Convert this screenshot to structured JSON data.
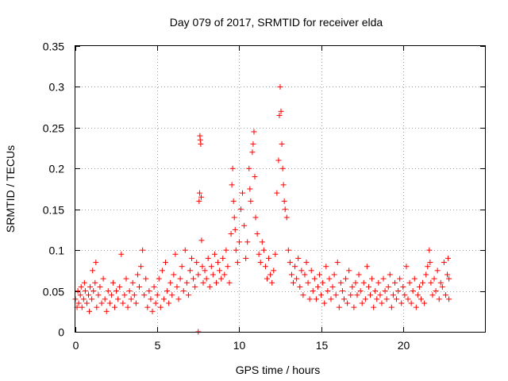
{
  "chart_data": {
    "type": "scatter",
    "title": "Day 079 of 2017, SRMTID for receiver elda",
    "xlabel": "GPS time / hours",
    "ylabel": "SRMTID / TECUs",
    "xlim": [
      0,
      25
    ],
    "ylim": [
      0,
      0.35
    ],
    "xticks": [
      0,
      5,
      10,
      15,
      20
    ],
    "xtick_labels": [
      "0",
      "5",
      "10",
      "15",
      "20"
    ],
    "yticks": [
      0,
      0.05,
      0.1,
      0.15,
      0.2,
      0.25,
      0.3,
      0.35
    ],
    "ytick_labels": [
      "0",
      "0.05",
      "0.1",
      "0.15",
      "0.2",
      "0.25",
      "0.3",
      "0.35"
    ],
    "grid": true,
    "marker": "plus",
    "color": "#ff0000",
    "series": [
      {
        "name": "SRMTID",
        "points": [
          [
            0.0,
            0.04
          ],
          [
            0.1,
            0.03
          ],
          [
            0.15,
            0.05
          ],
          [
            0.2,
            0.035
          ],
          [
            0.3,
            0.045
          ],
          [
            0.35,
            0.055
          ],
          [
            0.4,
            0.03
          ],
          [
            0.5,
            0.04
          ],
          [
            0.55,
            0.06
          ],
          [
            0.6,
            0.05
          ],
          [
            0.7,
            0.035
          ],
          [
            0.8,
            0.045
          ],
          [
            0.85,
            0.025
          ],
          [
            0.9,
            0.055
          ],
          [
            1.0,
            0.04
          ],
          [
            1.05,
            0.075
          ],
          [
            1.1,
            0.05
          ],
          [
            1.2,
            0.06
          ],
          [
            1.25,
            0.085
          ],
          [
            1.3,
            0.03
          ],
          [
            1.4,
            0.045
          ],
          [
            1.5,
            0.055
          ],
          [
            1.6,
            0.035
          ],
          [
            1.7,
            0.065
          ],
          [
            1.8,
            0.04
          ],
          [
            1.9,
            0.025
          ],
          [
            2.0,
            0.05
          ],
          [
            2.1,
            0.035
          ],
          [
            2.2,
            0.045
          ],
          [
            2.3,
            0.06
          ],
          [
            2.4,
            0.03
          ],
          [
            2.5,
            0.05
          ],
          [
            2.6,
            0.04
          ],
          [
            2.7,
            0.055
          ],
          [
            2.8,
            0.095
          ],
          [
            2.9,
            0.035
          ],
          [
            3.0,
            0.045
          ],
          [
            3.1,
            0.065
          ],
          [
            3.2,
            0.03
          ],
          [
            3.3,
            0.05
          ],
          [
            3.4,
            0.04
          ],
          [
            3.5,
            0.06
          ],
          [
            3.6,
            0.045
          ],
          [
            3.7,
            0.035
          ],
          [
            3.8,
            0.07
          ],
          [
            3.9,
            0.055
          ],
          [
            4.0,
            0.08
          ],
          [
            4.1,
            0.1
          ],
          [
            4.2,
            0.045
          ],
          [
            4.3,
            0.065
          ],
          [
            4.4,
            0.03
          ],
          [
            4.5,
            0.05
          ],
          [
            4.6,
            0.04
          ],
          [
            4.7,
            0.025
          ],
          [
            4.8,
            0.055
          ],
          [
            4.9,
            0.035
          ],
          [
            5.0,
            0.045
          ],
          [
            5.1,
            0.065
          ],
          [
            5.2,
            0.03
          ],
          [
            5.3,
            0.075
          ],
          [
            5.4,
            0.04
          ],
          [
            5.5,
            0.085
          ],
          [
            5.6,
            0.05
          ],
          [
            5.7,
            0.035
          ],
          [
            5.8,
            0.06
          ],
          [
            5.9,
            0.045
          ],
          [
            6.0,
            0.07
          ],
          [
            6.1,
            0.095
          ],
          [
            6.2,
            0.055
          ],
          [
            6.3,
            0.04
          ],
          [
            6.4,
            0.065
          ],
          [
            6.5,
            0.08
          ],
          [
            6.6,
            0.05
          ],
          [
            6.7,
            0.1
          ],
          [
            6.8,
            0.06
          ],
          [
            6.9,
            0.045
          ],
          [
            7.0,
            0.075
          ],
          [
            7.1,
            0.09
          ],
          [
            7.2,
            0.065
          ],
          [
            7.3,
            0.055
          ],
          [
            7.4,
            0.085
          ],
          [
            7.5,
            0.07
          ],
          [
            7.55,
            0.16
          ],
          [
            7.58,
            0.17
          ],
          [
            7.6,
            0.24
          ],
          [
            7.62,
            0.235
          ],
          [
            7.65,
            0.23
          ],
          [
            7.68,
            0.165
          ],
          [
            7.7,
            0.112
          ],
          [
            7.75,
            0.08
          ],
          [
            7.8,
            0.06
          ],
          [
            7.9,
            0.075
          ],
          [
            8.0,
            0.065
          ],
          [
            8.1,
            0.09
          ],
          [
            8.2,
            0.055
          ],
          [
            8.3,
            0.08
          ],
          [
            8.4,
            0.07
          ],
          [
            8.5,
            0.095
          ],
          [
            8.6,
            0.06
          ],
          [
            8.7,
            0.085
          ],
          [
            8.8,
            0.075
          ],
          [
            8.9,
            0.065
          ],
          [
            9.0,
            0.09
          ],
          [
            9.1,
            0.07
          ],
          [
            9.2,
            0.1
          ],
          [
            9.3,
            0.08
          ],
          [
            9.4,
            0.06
          ],
          [
            9.5,
            0.12
          ],
          [
            9.55,
            0.18
          ],
          [
            9.6,
            0.2
          ],
          [
            9.65,
            0.16
          ],
          [
            9.7,
            0.14
          ],
          [
            9.75,
            0.125
          ],
          [
            9.8,
            0.1
          ],
          [
            9.9,
            0.085
          ],
          [
            10.0,
            0.11
          ],
          [
            10.1,
            0.15
          ],
          [
            10.2,
            0.17
          ],
          [
            10.3,
            0.13
          ],
          [
            10.4,
            0.09
          ],
          [
            10.5,
            0.11
          ],
          [
            10.6,
            0.2
          ],
          [
            10.65,
            0.175
          ],
          [
            10.7,
            0.16
          ],
          [
            10.8,
            0.22
          ],
          [
            10.85,
            0.23
          ],
          [
            10.9,
            0.245
          ],
          [
            10.95,
            0.19
          ],
          [
            11.0,
            0.14
          ],
          [
            11.1,
            0.12
          ],
          [
            11.2,
            0.095
          ],
          [
            11.3,
            0.085
          ],
          [
            11.4,
            0.11
          ],
          [
            11.5,
            0.1
          ],
          [
            11.6,
            0.08
          ],
          [
            11.7,
            0.065
          ],
          [
            11.8,
            0.09
          ],
          [
            11.9,
            0.07
          ],
          [
            12.0,
            0.06
          ],
          [
            12.1,
            0.075
          ],
          [
            12.2,
            0.095
          ],
          [
            12.3,
            0.17
          ],
          [
            12.4,
            0.21
          ],
          [
            12.45,
            0.265
          ],
          [
            12.5,
            0.3
          ],
          [
            12.55,
            0.27
          ],
          [
            12.6,
            0.23
          ],
          [
            12.65,
            0.2
          ],
          [
            12.7,
            0.18
          ],
          [
            12.75,
            0.16
          ],
          [
            12.8,
            0.15
          ],
          [
            12.9,
            0.14
          ],
          [
            13.0,
            0.1
          ],
          [
            13.1,
            0.085
          ],
          [
            13.2,
            0.07
          ],
          [
            13.3,
            0.06
          ],
          [
            13.4,
            0.08
          ],
          [
            13.5,
            0.065
          ],
          [
            13.6,
            0.09
          ],
          [
            13.7,
            0.055
          ],
          [
            13.8,
            0.075
          ],
          [
            13.9,
            0.045
          ],
          [
            14.0,
            0.07
          ],
          [
            14.1,
            0.085
          ],
          [
            14.2,
            0.06
          ],
          [
            14.3,
            0.04
          ],
          [
            14.4,
            0.075
          ],
          [
            14.5,
            0.05
          ],
          [
            14.6,
            0.065
          ],
          [
            14.7,
            0.04
          ],
          [
            14.8,
            0.055
          ],
          [
            14.9,
            0.07
          ],
          [
            15.0,
            0.045
          ],
          [
            15.1,
            0.06
          ],
          [
            15.2,
            0.035
          ],
          [
            15.3,
            0.08
          ],
          [
            15.4,
            0.05
          ],
          [
            15.5,
            0.065
          ],
          [
            15.6,
            0.04
          ],
          [
            15.7,
            0.055
          ],
          [
            15.8,
            0.07
          ],
          [
            15.9,
            0.045
          ],
          [
            16.0,
            0.085
          ],
          [
            16.1,
            0.03
          ],
          [
            16.2,
            0.06
          ],
          [
            16.3,
            0.05
          ],
          [
            16.4,
            0.04
          ],
          [
            16.5,
            0.065
          ],
          [
            16.6,
            0.035
          ],
          [
            16.7,
            0.075
          ],
          [
            16.8,
            0.045
          ],
          [
            16.9,
            0.055
          ],
          [
            17.0,
            0.03
          ],
          [
            17.1,
            0.06
          ],
          [
            17.2,
            0.045
          ],
          [
            17.3,
            0.07
          ],
          [
            17.4,
            0.05
          ],
          [
            17.5,
            0.035
          ],
          [
            17.6,
            0.06
          ],
          [
            17.7,
            0.04
          ],
          [
            17.8,
            0.08
          ],
          [
            17.9,
            0.055
          ],
          [
            18.0,
            0.045
          ],
          [
            18.1,
            0.065
          ],
          [
            18.2,
            0.03
          ],
          [
            18.3,
            0.05
          ],
          [
            18.4,
            0.04
          ],
          [
            18.5,
            0.06
          ],
          [
            18.6,
            0.045
          ],
          [
            18.7,
            0.035
          ],
          [
            18.8,
            0.065
          ],
          [
            18.9,
            0.05
          ],
          [
            19.0,
            0.04
          ],
          [
            19.1,
            0.055
          ],
          [
            19.2,
            0.07
          ],
          [
            19.3,
            0.03
          ],
          [
            19.4,
            0.045
          ],
          [
            19.5,
            0.06
          ],
          [
            19.6,
            0.04
          ],
          [
            19.7,
            0.05
          ],
          [
            19.8,
            0.065
          ],
          [
            19.9,
            0.035
          ],
          [
            20.0,
            0.055
          ],
          [
            20.1,
            0.045
          ],
          [
            20.2,
            0.08
          ],
          [
            20.3,
            0.04
          ],
          [
            20.4,
            0.06
          ],
          [
            20.5,
            0.035
          ],
          [
            20.6,
            0.05
          ],
          [
            20.7,
            0.065
          ],
          [
            20.8,
            0.03
          ],
          [
            20.9,
            0.045
          ],
          [
            21.0,
            0.055
          ],
          [
            21.1,
            0.04
          ],
          [
            21.2,
            0.06
          ],
          [
            21.3,
            0.035
          ],
          [
            21.4,
            0.07
          ],
          [
            21.5,
            0.08
          ],
          [
            21.6,
            0.1
          ],
          [
            21.65,
            0.085
          ],
          [
            21.7,
            0.06
          ],
          [
            21.8,
            0.045
          ],
          [
            21.9,
            0.065
          ],
          [
            22.0,
            0.05
          ],
          [
            22.1,
            0.075
          ],
          [
            22.2,
            0.04
          ],
          [
            22.3,
            0.06
          ],
          [
            22.4,
            0.055
          ],
          [
            22.5,
            0.085
          ],
          [
            22.6,
            0.045
          ],
          [
            22.7,
            0.07
          ],
          [
            22.75,
            0.09
          ],
          [
            22.8,
            0.04
          ],
          [
            22.8,
            0.065
          ],
          [
            7.5,
            0.0
          ]
        ]
      }
    ]
  }
}
